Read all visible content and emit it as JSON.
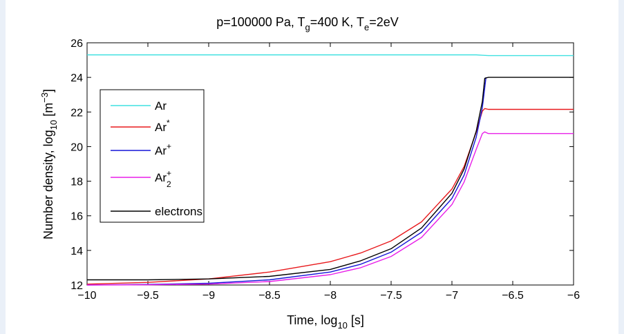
{
  "chart_data": {
    "type": "line",
    "title": {
      "base": "p=100000 Pa, T",
      "sub1": "g",
      "mid": "=400 K, T",
      "sub2": "e",
      "tail": "=2eV"
    },
    "xlabel": {
      "base": "Time, log",
      "sub": "10",
      "tail": " [s]"
    },
    "ylabel": {
      "base": "Number density, log",
      "sub": "10",
      "mid": " [m",
      "sup": "−3",
      "tail": "]"
    },
    "xlim": [
      -10,
      -6
    ],
    "ylim": [
      12,
      26
    ],
    "xticks": [
      "−10",
      "−9.5",
      "−9",
      "−8.5",
      "−8",
      "−7.5",
      "−7",
      "−6.5",
      "−6"
    ],
    "yticks": [
      "12",
      "14",
      "16",
      "18",
      "20",
      "22",
      "24",
      "26"
    ],
    "legend_placement": "left",
    "series": [
      {
        "name": "Ar",
        "legend": {
          "base": "Ar",
          "sup": "",
          "sub": ""
        },
        "color": "#3fe0e0",
        "x": [
          -10,
          -7.5,
          -6.8,
          -6.75,
          -6.7,
          -6
        ],
        "y": [
          25.3,
          25.3,
          25.3,
          25.28,
          25.26,
          25.26
        ]
      },
      {
        "name": "Ar*",
        "legend": {
          "base": "Ar",
          "sup": "*",
          "sub": ""
        },
        "color": "#e8191c",
        "x": [
          -10,
          -9.5,
          -9,
          -8.5,
          -8,
          -7.75,
          -7.5,
          -7.25,
          -7,
          -6.9,
          -6.8,
          -6.75,
          -6.73,
          -6.7,
          -6
        ],
        "y": [
          12.05,
          12.15,
          12.35,
          12.75,
          13.35,
          13.85,
          14.55,
          15.65,
          17.55,
          18.85,
          20.85,
          22.05,
          22.2,
          22.15,
          22.15
        ]
      },
      {
        "name": "Ar+",
        "legend": {
          "base": "Ar",
          "sup": "+",
          "sub": ""
        },
        "color": "#1515d8",
        "x": [
          -10,
          -9.5,
          -9,
          -8.5,
          -8,
          -7.75,
          -7.5,
          -7.25,
          -7,
          -6.9,
          -6.8,
          -6.75,
          -6.72
        ],
        "y": [
          12.0,
          12.03,
          12.1,
          12.3,
          12.75,
          13.2,
          13.9,
          15.05,
          17.0,
          18.35,
          20.55,
          22.25,
          24.0
        ]
      },
      {
        "name": "Ar2+",
        "legend": {
          "base": "Ar",
          "sup": "+",
          "sub": "2"
        },
        "color": "#e81ee8",
        "x": [
          -10,
          -9.5,
          -9,
          -8.5,
          -8,
          -7.75,
          -7.5,
          -7.25,
          -7,
          -6.9,
          -6.8,
          -6.75,
          -6.73,
          -6.7,
          -6
        ],
        "y": [
          12.0,
          12.01,
          12.05,
          12.2,
          12.6,
          13.0,
          13.65,
          14.75,
          16.65,
          17.95,
          19.85,
          20.75,
          20.85,
          20.75,
          20.75
        ]
      },
      {
        "name": "electrons",
        "legend": {
          "base": "electrons",
          "sup": "",
          "sub": ""
        },
        "color": "#000000",
        "x": [
          -10,
          -9.5,
          -9,
          -8.5,
          -8,
          -7.75,
          -7.5,
          -7.25,
          -7,
          -6.9,
          -6.8,
          -6.75,
          -6.73,
          -6.7,
          -6
        ],
        "y": [
          12.3,
          12.3,
          12.35,
          12.5,
          12.9,
          13.4,
          14.1,
          15.3,
          17.3,
          18.7,
          20.9,
          22.6,
          23.95,
          24.0,
          24.0
        ]
      }
    ]
  }
}
